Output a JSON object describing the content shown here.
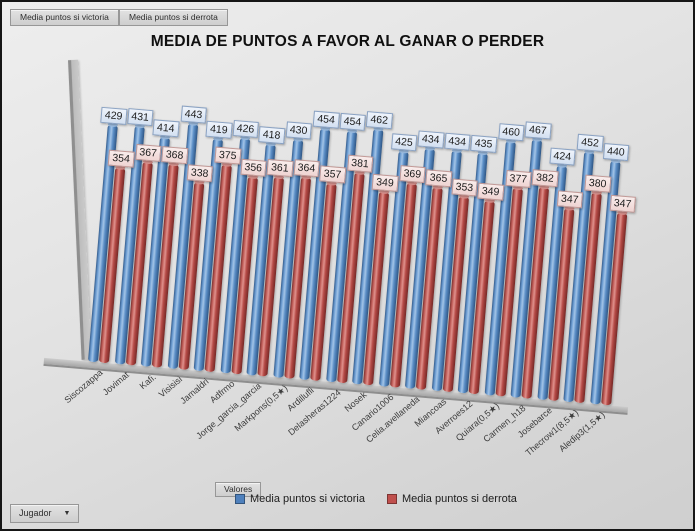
{
  "field_buttons": [
    {
      "label": "Media puntos  si victoria"
    },
    {
      "label": "Media puntos  si derrota"
    }
  ],
  "title": "MEDIA DE PUNTOS A FAVOR AL GANAR O PERDER",
  "axis_button": {
    "label": "Jugador",
    "dropdown_icon": "▼"
  },
  "legend": {
    "field_label": "Valores",
    "items": [
      {
        "label": "Media puntos si victoria",
        "color": "#4F81BD"
      },
      {
        "label": "Media puntos si derrota",
        "color": "#C0504D"
      }
    ]
  },
  "chart_data": {
    "type": "bar",
    "style": "3d-cylinder",
    "title": "MEDIA DE PUNTOS A FAVOR AL GANAR O PERDER",
    "categories": [
      "Siscozappa",
      "Jovimat",
      "Kafi.",
      "Visisisi",
      "Jamaldri",
      "Adfrmo",
      "Jorge_garcia_garcia",
      "Markpons(0,5★)",
      "Ardillufli",
      "Delasheras1224",
      "Nosek",
      "Canario1006",
      "Celia.avellaneda",
      "Miancoas",
      "Averroes12",
      "Quiara(0,5★)",
      "Carmen_h18",
      "Josebarce",
      "Thecrow1(8,5★)",
      "Aledip3(1,5★)"
    ],
    "series": [
      {
        "name": "Media puntos si victoria",
        "color": "#4F81BD",
        "values": [
          429,
          431,
          414,
          443,
          419,
          426,
          418,
          430,
          454,
          454,
          462,
          425,
          434,
          434,
          435,
          460,
          467,
          424,
          452,
          440
        ]
      },
      {
        "name": "Media puntos si derrota",
        "color": "#C0504D",
        "values": [
          354,
          367,
          368,
          338,
          375,
          356,
          361,
          364,
          357,
          381,
          349,
          369,
          365,
          353,
          349,
          377,
          382,
          347,
          380,
          347
        ]
      }
    ],
    "xlabel": "Jugador",
    "ylabel": "",
    "ylim": [
      0,
      470
    ],
    "grid": false,
    "legend_position": "bottom",
    "data_labels": true
  }
}
